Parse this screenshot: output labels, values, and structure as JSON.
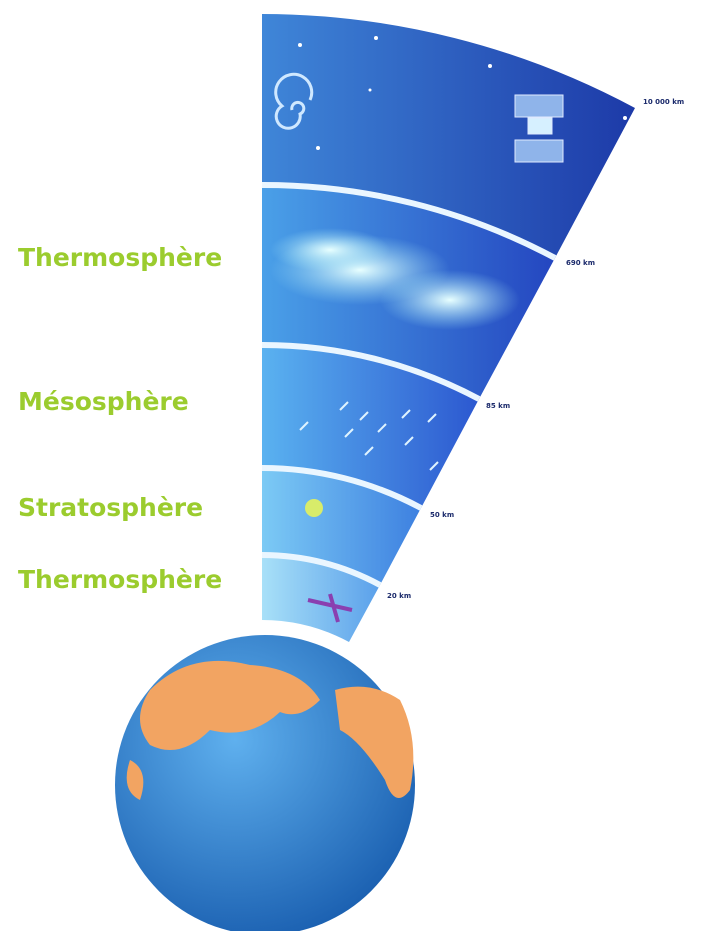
{
  "layers": [
    "Thermosphère",
    "Mésosphère",
    "Stratosphère",
    "Thermosphère"
  ],
  "altitudes": [
    "10 000 km",
    "690 km",
    "85 km",
    "50 km",
    "20 km"
  ]
}
